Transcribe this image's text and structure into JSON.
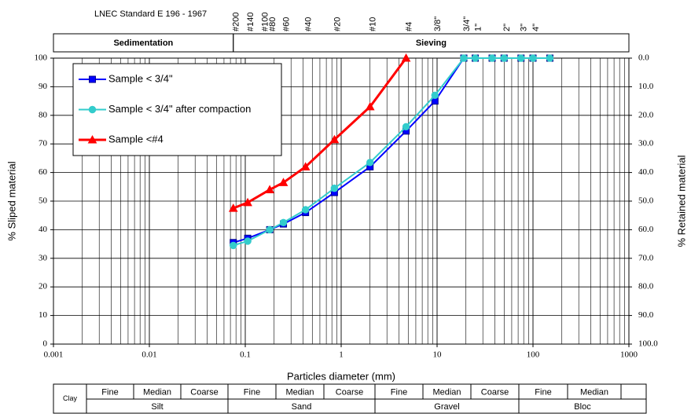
{
  "chart_data": {
    "type": "line",
    "header_note": "LNEC Standard  E 196 - 1967",
    "zones": [
      {
        "label": "Sedimentation",
        "range": [
          0.001,
          0.075
        ]
      },
      {
        "label": "Sieving",
        "range": [
          0.075,
          1000
        ]
      }
    ],
    "sieves": [
      {
        "label": "#200",
        "size": 0.075
      },
      {
        "label": "#140",
        "size": 0.106
      },
      {
        "label": "#100",
        "size": 0.15
      },
      {
        "label": "#80",
        "size": 0.18
      },
      {
        "label": "#60",
        "size": 0.25
      },
      {
        "label": "#40",
        "size": 0.425
      },
      {
        "label": "#20",
        "size": 0.85
      },
      {
        "label": "#10",
        "size": 2
      },
      {
        "label": "#4",
        "size": 4.75
      },
      {
        "label": "3/8\"",
        "size": 9.5
      },
      {
        "label": "3/4\"",
        "size": 19
      },
      {
        "label": "1\"",
        "size": 25
      },
      {
        "label": "2\"",
        "size": 50
      },
      {
        "label": "3\"",
        "size": 75
      },
      {
        "label": "4\"",
        "size": 100
      }
    ],
    "y_label": "% Sliped material",
    "y2_label": "% Retained material",
    "x_label": "Particles diameter (mm)",
    "xlog": true,
    "xlim": [
      0.001,
      1000
    ],
    "xticks": [
      0.001,
      0.01,
      0.1,
      1,
      10,
      100,
      1000
    ],
    "ylim": [
      0,
      100
    ],
    "yticks": [
      0,
      10,
      20,
      30,
      40,
      50,
      60,
      70,
      80,
      90,
      100
    ],
    "y2lim": [
      100,
      0
    ],
    "y2ticks": [
      {
        "value": 0,
        "label": "0.0"
      },
      {
        "value": 10,
        "label": "10.0"
      },
      {
        "value": 20,
        "label": "20.0"
      },
      {
        "value": 30,
        "label": "30.0"
      },
      {
        "value": 40,
        "label": "40.0"
      },
      {
        "value": 50,
        "label": "50.0"
      },
      {
        "value": 60,
        "label": "60.0"
      },
      {
        "value": 70,
        "label": "70.0"
      },
      {
        "value": 80,
        "label": "80.0"
      },
      {
        "value": 90,
        "label": "90.0"
      },
      {
        "value": 100,
        "label": "100.0"
      }
    ],
    "grid": true,
    "minor_grid": true,
    "legend": "upper left",
    "series": [
      {
        "name": "Sample < 3/4\"",
        "color": "#0000ff",
        "marker": "square",
        "x": [
          0.075,
          0.106,
          0.18,
          0.25,
          0.425,
          0.85,
          2,
          4.75,
          9.5,
          19,
          25,
          37.5,
          50,
          75,
          100,
          150
        ],
        "values": [
          35.5,
          37,
          40,
          42,
          46,
          53,
          62,
          74.5,
          85,
          100,
          100,
          100,
          100,
          100,
          100,
          100
        ]
      },
      {
        "name": "Sample < 3/4\"  after compaction",
        "color": "#33cccc",
        "marker": "circle",
        "x": [
          0.075,
          0.106,
          0.18,
          0.25,
          0.425,
          0.85,
          2,
          4.75,
          9.5,
          19,
          25,
          37.5,
          50,
          75,
          100,
          150
        ],
        "values": [
          34.5,
          36,
          40,
          42.5,
          47,
          54.5,
          63.5,
          76,
          87,
          100,
          100,
          100,
          100,
          100,
          100,
          100
        ]
      },
      {
        "name": "Sample <#4",
        "color": "#ff0000",
        "marker": "triangle",
        "x": [
          0.075,
          0.106,
          0.18,
          0.25,
          0.425,
          0.85,
          2,
          4.75
        ],
        "values": [
          47.5,
          49.5,
          54,
          56.5,
          62,
          71.5,
          83,
          100
        ]
      }
    ],
    "classification": {
      "clay": "Clay",
      "groups": [
        {
          "name": "Silt",
          "sub": [
            "Fine",
            "Median",
            "Coarse"
          ]
        },
        {
          "name": "Sand",
          "sub": [
            "Fine",
            "Median",
            "Coarse"
          ]
        },
        {
          "name": "Gravel",
          "sub": [
            "Fine",
            "Median",
            "Coarse"
          ]
        },
        {
          "name": "Bloc",
          "sub": [
            "Fine",
            "Median"
          ]
        }
      ]
    }
  }
}
